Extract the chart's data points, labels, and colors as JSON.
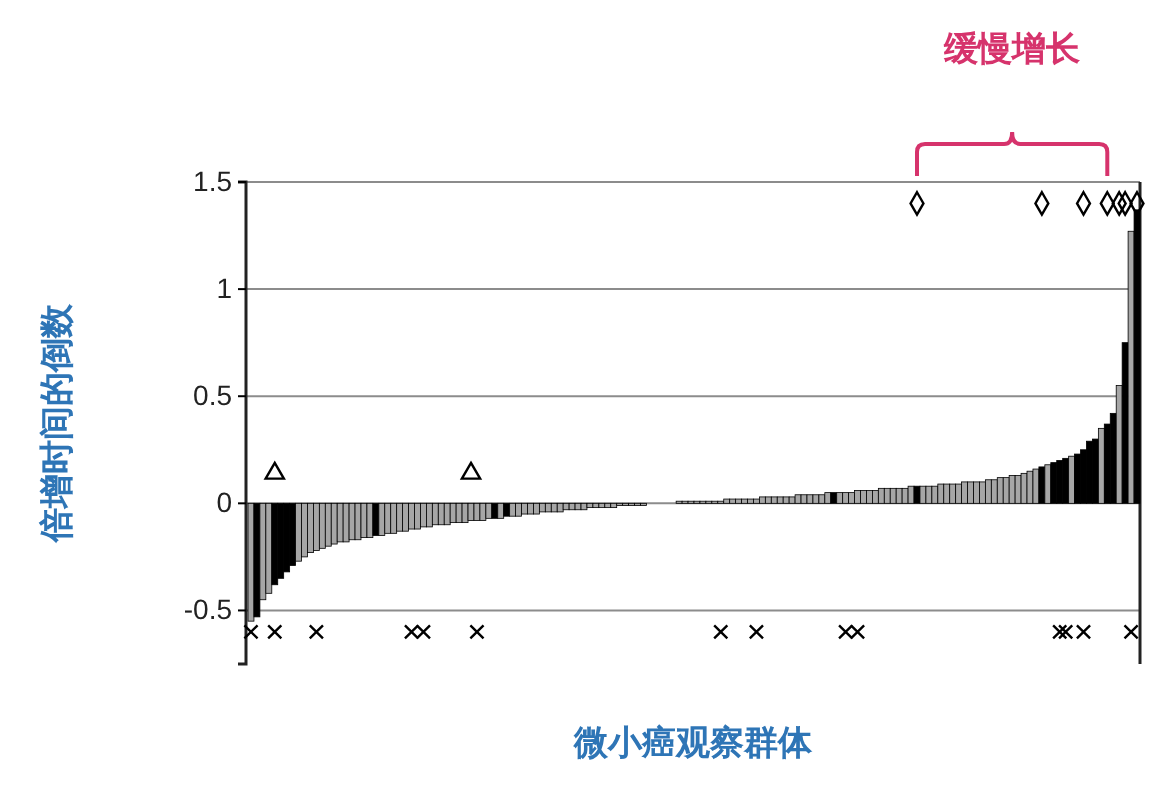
{
  "chart_data": {
    "type": "bar",
    "xlabel": "微小癌观察群体",
    "ylabel": "倍增时间的倒数",
    "annotations": [
      "缓慢增长"
    ],
    "categories": [
      null,
      null,
      null,
      null,
      null,
      null,
      null,
      null,
      null,
      null,
      null,
      null,
      null,
      null,
      null,
      null,
      null,
      null,
      null,
      null,
      null,
      null,
      null,
      null,
      null,
      null,
      null,
      null,
      null,
      null,
      null,
      null,
      null,
      null,
      null,
      null,
      null,
      null,
      null,
      null,
      null,
      null,
      null,
      null,
      null,
      null,
      null,
      null,
      null,
      null,
      null,
      null,
      null,
      null,
      null,
      null,
      null,
      null,
      null,
      null,
      null,
      null,
      null,
      null,
      null,
      null,
      null,
      null,
      null,
      null,
      null,
      null,
      null,
      null,
      null,
      null,
      null,
      null,
      null,
      null,
      null,
      null,
      null,
      null,
      null,
      null,
      null,
      null,
      null,
      null,
      null,
      null,
      null,
      null,
      null,
      null,
      null,
      null,
      null,
      null,
      null,
      null,
      null,
      null,
      null,
      null,
      null,
      null,
      null,
      null,
      null,
      null,
      null,
      null,
      null,
      null,
      null,
      null,
      null,
      null,
      null,
      null,
      null,
      null,
      null,
      null,
      null,
      null,
      null,
      null,
      null,
      null,
      null,
      null,
      null,
      null,
      null,
      null,
      null,
      null,
      null,
      null,
      null,
      null,
      null,
      null,
      null,
      null,
      null,
      null
    ],
    "ylim": [
      -0.75,
      1.5
    ],
    "yticks": [
      -0.5,
      0,
      0.5,
      1,
      1.5
    ],
    "grid": "y",
    "series": [
      {
        "type": "bar",
        "colors": [
          "#a6a6a6",
          "#000000",
          "#a6a6a6",
          "#a6a6a6",
          "#000000",
          "#000000",
          "#000000",
          "#000000",
          "#a6a6a6",
          "#a6a6a6",
          "#a6a6a6",
          "#a6a6a6",
          "#a6a6a6",
          "#a6a6a6",
          "#a6a6a6",
          "#a6a6a6",
          "#a6a6a6",
          "#a6a6a6",
          "#a6a6a6",
          "#a6a6a6",
          "#a6a6a6",
          "#000000",
          "#a6a6a6",
          "#a6a6a6",
          "#a6a6a6",
          "#a6a6a6",
          "#a6a6a6",
          "#a6a6a6",
          "#a6a6a6",
          "#a6a6a6",
          "#a6a6a6",
          "#a6a6a6",
          "#a6a6a6",
          "#a6a6a6",
          "#a6a6a6",
          "#a6a6a6",
          "#a6a6a6",
          "#a6a6a6",
          "#a6a6a6",
          "#a6a6a6",
          "#a6a6a6",
          "#000000",
          "#a6a6a6",
          "#000000",
          "#a6a6a6",
          "#a6a6a6",
          "#a6a6a6",
          "#a6a6a6",
          "#a6a6a6",
          "#a6a6a6",
          "#a6a6a6",
          "#a6a6a6",
          "#a6a6a6",
          "#a6a6a6",
          "#a6a6a6",
          "#a6a6a6",
          "#a6a6a6",
          "#a6a6a6",
          "#a6a6a6",
          "#a6a6a6",
          "#a6a6a6",
          "#a6a6a6",
          "#a6a6a6",
          "#a6a6a6",
          "#a6a6a6",
          "#a6a6a6",
          "#a6a6a6",
          "#a6a6a6",
          "#a6a6a6",
          "#a6a6a6",
          "#a6a6a6",
          "#a6a6a6",
          "#a6a6a6",
          "#a6a6a6",
          "#a6a6a6",
          "#a6a6a6",
          "#a6a6a6",
          "#a6a6a6",
          "#a6a6a6",
          "#a6a6a6",
          "#a6a6a6",
          "#a6a6a6",
          "#a6a6a6",
          "#a6a6a6",
          "#a6a6a6",
          "#a6a6a6",
          "#a6a6a6",
          "#a6a6a6",
          "#a6a6a6",
          "#a6a6a6",
          "#a6a6a6",
          "#a6a6a6",
          "#a6a6a6",
          "#a6a6a6",
          "#a6a6a6",
          "#a6a6a6",
          "#a6a6a6",
          "#a6a6a6",
          "#000000",
          "#a6a6a6",
          "#a6a6a6",
          "#a6a6a6",
          "#a6a6a6",
          "#a6a6a6",
          "#a6a6a6",
          "#a6a6a6",
          "#a6a6a6",
          "#a6a6a6",
          "#a6a6a6",
          "#a6a6a6",
          "#a6a6a6",
          "#a6a6a6",
          "#000000",
          "#a6a6a6",
          "#a6a6a6",
          "#a6a6a6",
          "#a6a6a6",
          "#a6a6a6",
          "#a6a6a6",
          "#a6a6a6",
          "#a6a6a6",
          "#a6a6a6",
          "#a6a6a6",
          "#a6a6a6",
          "#a6a6a6",
          "#a6a6a6",
          "#a6a6a6",
          "#a6a6a6",
          "#a6a6a6",
          "#a6a6a6",
          "#a6a6a6",
          "#a6a6a6",
          "#a6a6a6",
          "#000000",
          "#a6a6a6",
          "#000000",
          "#000000",
          "#000000",
          "#a6a6a6",
          "#000000",
          "#000000",
          "#000000",
          "#000000",
          "#a6a6a6",
          "#000000",
          "#000000",
          "#a6a6a6",
          "#000000",
          "#a6a6a6",
          "#000000"
        ],
        "values": [
          -0.55,
          -0.53,
          -0.45,
          -0.42,
          -0.38,
          -0.35,
          -0.32,
          -0.29,
          -0.27,
          -0.25,
          -0.23,
          -0.22,
          -0.21,
          -0.2,
          -0.19,
          -0.18,
          -0.18,
          -0.17,
          -0.17,
          -0.16,
          -0.16,
          -0.15,
          -0.15,
          -0.14,
          -0.14,
          -0.13,
          -0.13,
          -0.12,
          -0.12,
          -0.11,
          -0.11,
          -0.1,
          -0.1,
          -0.1,
          -0.09,
          -0.09,
          -0.09,
          -0.08,
          -0.08,
          -0.08,
          -0.07,
          -0.07,
          -0.07,
          -0.06,
          -0.06,
          -0.06,
          -0.05,
          -0.05,
          -0.05,
          -0.04,
          -0.04,
          -0.04,
          -0.04,
          -0.03,
          -0.03,
          -0.03,
          -0.03,
          -0.02,
          -0.02,
          -0.02,
          -0.02,
          -0.02,
          -0.01,
          -0.01,
          -0.01,
          -0.01,
          -0.01,
          0,
          0,
          0,
          0,
          0,
          0.01,
          0.01,
          0.01,
          0.01,
          0.01,
          0.01,
          0.01,
          0.01,
          0.02,
          0.02,
          0.02,
          0.02,
          0.02,
          0.02,
          0.03,
          0.03,
          0.03,
          0.03,
          0.03,
          0.03,
          0.04,
          0.04,
          0.04,
          0.04,
          0.04,
          0.05,
          0.05,
          0.05,
          0.05,
          0.05,
          0.06,
          0.06,
          0.06,
          0.06,
          0.07,
          0.07,
          0.07,
          0.07,
          0.07,
          0.08,
          0.08,
          0.08,
          0.08,
          0.08,
          0.09,
          0.09,
          0.09,
          0.09,
          0.1,
          0.1,
          0.1,
          0.1,
          0.11,
          0.11,
          0.12,
          0.12,
          0.13,
          0.13,
          0.14,
          0.15,
          0.16,
          0.17,
          0.18,
          0.19,
          0.2,
          0.21,
          0.22,
          0.23,
          0.25,
          0.29,
          0.3,
          0.35,
          0.37,
          0.42,
          0.55,
          0.75,
          1.27,
          1.37
        ]
      },
      {
        "type": "scatter",
        "marker": "triangle",
        "color": "#000000",
        "values": [
          null,
          null,
          null,
          null,
          0.14,
          null,
          null,
          null,
          null,
          null,
          null,
          null,
          null,
          null,
          null,
          null,
          null,
          null,
          null,
          null,
          null,
          null,
          null,
          null,
          null,
          null,
          null,
          null,
          null,
          null,
          null,
          null,
          null,
          null,
          null,
          null,
          null,
          0.14,
          null,
          null,
          null,
          null,
          null,
          null,
          null,
          null,
          null,
          null,
          null,
          null,
          null,
          null,
          null,
          null,
          null,
          null,
          null,
          null,
          null,
          null,
          null,
          null,
          null,
          null,
          null,
          null,
          null,
          null,
          null,
          null,
          null,
          null,
          null,
          null,
          null,
          null,
          null,
          null,
          null,
          null,
          null,
          null,
          null,
          null,
          null,
          null,
          null,
          null,
          null,
          null,
          null,
          null,
          null,
          null,
          null,
          null,
          null,
          null,
          null,
          null,
          null,
          null,
          null,
          null,
          null,
          null,
          null,
          null,
          null,
          null,
          null,
          null,
          null,
          null,
          null,
          null,
          null,
          null,
          null,
          null,
          null,
          null,
          null,
          null,
          null,
          null,
          null,
          null,
          null,
          null,
          null,
          null,
          null,
          null,
          null,
          null,
          null,
          null,
          null,
          null,
          null,
          null,
          null,
          null,
          null,
          null,
          null,
          null,
          null,
          null
        ]
      },
      {
        "type": "scatter",
        "marker": "diamond",
        "color": "#000000",
        "values": [
          null,
          null,
          null,
          null,
          null,
          null,
          null,
          null,
          null,
          null,
          null,
          null,
          null,
          null,
          null,
          null,
          null,
          null,
          null,
          null,
          null,
          null,
          null,
          null,
          null,
          null,
          null,
          null,
          null,
          null,
          null,
          null,
          null,
          null,
          null,
          null,
          null,
          null,
          null,
          null,
          null,
          null,
          null,
          null,
          null,
          null,
          null,
          null,
          null,
          null,
          null,
          null,
          null,
          null,
          null,
          null,
          null,
          null,
          null,
          null,
          null,
          null,
          null,
          null,
          null,
          null,
          null,
          null,
          null,
          null,
          null,
          null,
          null,
          null,
          null,
          null,
          null,
          null,
          null,
          null,
          null,
          null,
          null,
          null,
          null,
          null,
          null,
          null,
          null,
          null,
          null,
          null,
          null,
          null,
          null,
          null,
          null,
          null,
          null,
          null,
          null,
          null,
          null,
          null,
          null,
          null,
          null,
          null,
          null,
          null,
          null,
          null,
          1.4,
          null,
          null,
          null,
          null,
          null,
          null,
          null,
          null,
          null,
          null,
          null,
          null,
          null,
          null,
          null,
          null,
          null,
          null,
          null,
          null,
          1.4,
          null,
          null,
          null,
          null,
          null,
          null,
          1.4,
          null,
          null,
          null,
          1.4,
          null,
          1.4,
          1.4,
          null,
          1.4
        ]
      },
      {
        "type": "scatter",
        "marker": "cross",
        "color": "#000000",
        "values": [
          -0.6,
          null,
          null,
          null,
          -0.6,
          null,
          null,
          null,
          null,
          null,
          null,
          -0.6,
          null,
          null,
          null,
          null,
          null,
          null,
          null,
          null,
          null,
          null,
          null,
          null,
          null,
          null,
          null,
          -0.6,
          null,
          -0.6,
          null,
          null,
          null,
          null,
          null,
          null,
          null,
          null,
          -0.6,
          null,
          null,
          null,
          null,
          null,
          null,
          null,
          null,
          null,
          null,
          null,
          null,
          null,
          null,
          null,
          null,
          null,
          null,
          null,
          null,
          null,
          null,
          null,
          null,
          null,
          null,
          null,
          null,
          null,
          null,
          null,
          null,
          null,
          null,
          null,
          null,
          null,
          null,
          null,
          null,
          -0.6,
          null,
          null,
          null,
          null,
          null,
          -0.6,
          null,
          null,
          null,
          null,
          null,
          null,
          null,
          null,
          null,
          null,
          null,
          null,
          null,
          null,
          -0.6,
          null,
          -0.6,
          null,
          null,
          null,
          null,
          null,
          null,
          null,
          null,
          null,
          null,
          null,
          null,
          null,
          null,
          null,
          null,
          null,
          null,
          null,
          null,
          null,
          null,
          null,
          null,
          null,
          null,
          null,
          null,
          null,
          null,
          null,
          null,
          null,
          -0.6,
          -0.6,
          null,
          null,
          -0.6,
          null,
          null,
          null,
          null,
          null,
          null,
          null,
          -0.6,
          null
        ]
      }
    ]
  }
}
